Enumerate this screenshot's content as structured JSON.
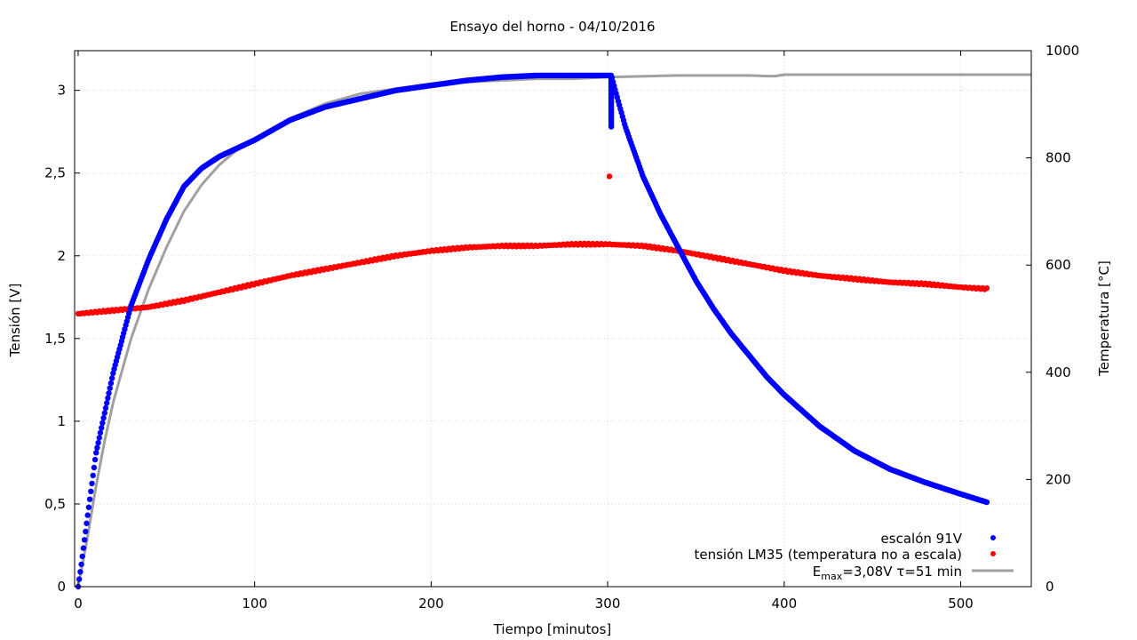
{
  "chart_data": {
    "type": "scatter",
    "title": "Ensayo del horno - 04/10/2016",
    "xlabel": "Tiempo [minutos]",
    "ylabel": "Tensión [V]",
    "y2label": "Temperatura [°C]",
    "xlim": [
      -2,
      540
    ],
    "ylim": [
      0,
      3.24
    ],
    "y2lim": [
      0,
      1000
    ],
    "xticks": [
      0,
      100,
      200,
      300,
      400,
      500
    ],
    "yticks": [
      0,
      0.5,
      1,
      1.5,
      2,
      2.5,
      3
    ],
    "ytick_labels": [
      "0",
      "0,5",
      "1",
      "1,5",
      "2",
      "2,5",
      "3"
    ],
    "y2ticks": [
      0,
      200,
      400,
      600,
      800,
      1000
    ],
    "grid": true,
    "legend_position": "bottom-right",
    "colors": {
      "blue": "#0000ff",
      "red": "#ff0000",
      "gray": "#a0a0a0"
    },
    "series": [
      {
        "name": "escalón 91V",
        "style": "points",
        "color": "#0000ff",
        "x": [
          0,
          2,
          5,
          10,
          15,
          20,
          30,
          40,
          50,
          60,
          70,
          80,
          90,
          100,
          120,
          140,
          160,
          180,
          200,
          220,
          240,
          260,
          280,
          300,
          302,
          310,
          320,
          330,
          340,
          350,
          360,
          370,
          380,
          390,
          400,
          420,
          440,
          460,
          480,
          500,
          515
        ],
        "y": [
          0,
          0.15,
          0.4,
          0.8,
          1.05,
          1.3,
          1.7,
          1.98,
          2.22,
          2.42,
          2.53,
          2.6,
          2.65,
          2.7,
          2.82,
          2.9,
          2.95,
          3.0,
          3.03,
          3.06,
          3.08,
          3.09,
          3.09,
          3.09,
          3.09,
          2.78,
          2.48,
          2.25,
          2.05,
          1.85,
          1.68,
          1.53,
          1.4,
          1.27,
          1.16,
          0.97,
          0.82,
          0.71,
          0.63,
          0.56,
          0.51
        ]
      },
      {
        "name": "tensión LM35 (temperatura no a escala)",
        "style": "points",
        "color": "#ff0000",
        "x": [
          0,
          20,
          40,
          60,
          80,
          100,
          120,
          140,
          160,
          180,
          200,
          220,
          240,
          260,
          280,
          300,
          320,
          340,
          360,
          380,
          400,
          420,
          440,
          460,
          480,
          500,
          515
        ],
        "y": [
          1.65,
          1.67,
          1.69,
          1.73,
          1.78,
          1.83,
          1.88,
          1.92,
          1.96,
          2.0,
          2.03,
          2.05,
          2.06,
          2.06,
          2.07,
          2.07,
          2.06,
          2.03,
          1.99,
          1.95,
          1.91,
          1.88,
          1.86,
          1.84,
          1.83,
          1.81,
          1.8
        ],
        "outlier": {
          "x": 301,
          "y": 2.48
        }
      },
      {
        "name": "E_max=3,08V τ=51 min",
        "style": "line",
        "color": "#a0a0a0",
        "x": [
          0,
          5,
          10,
          15,
          20,
          30,
          40,
          50,
          60,
          70,
          80,
          90,
          100,
          120,
          140,
          160,
          180,
          200,
          220,
          240,
          260,
          280,
          300,
          340,
          380,
          390,
          395,
          400,
          450,
          500,
          540
        ],
        "y": [
          0,
          0.28,
          0.6,
          0.88,
          1.12,
          1.5,
          1.8,
          2.05,
          2.27,
          2.43,
          2.55,
          2.64,
          2.71,
          2.83,
          2.92,
          2.98,
          3.01,
          3.04,
          3.05,
          3.06,
          3.07,
          3.07,
          3.08,
          3.09,
          3.09,
          3.086,
          3.086,
          3.095,
          3.095,
          3.095,
          3.095
        ]
      }
    ],
    "legend": [
      {
        "text": "escalón 91V",
        "marker": "point",
        "color": "#0000ff"
      },
      {
        "text": "tensión LM35 (temperatura no a escala)",
        "marker": "point",
        "color": "#ff0000"
      },
      {
        "text_main": "E",
        "text_sub": "max",
        "text_rest": "=3,08V τ=51 min",
        "marker": "line",
        "color": "#a0a0a0"
      }
    ]
  }
}
